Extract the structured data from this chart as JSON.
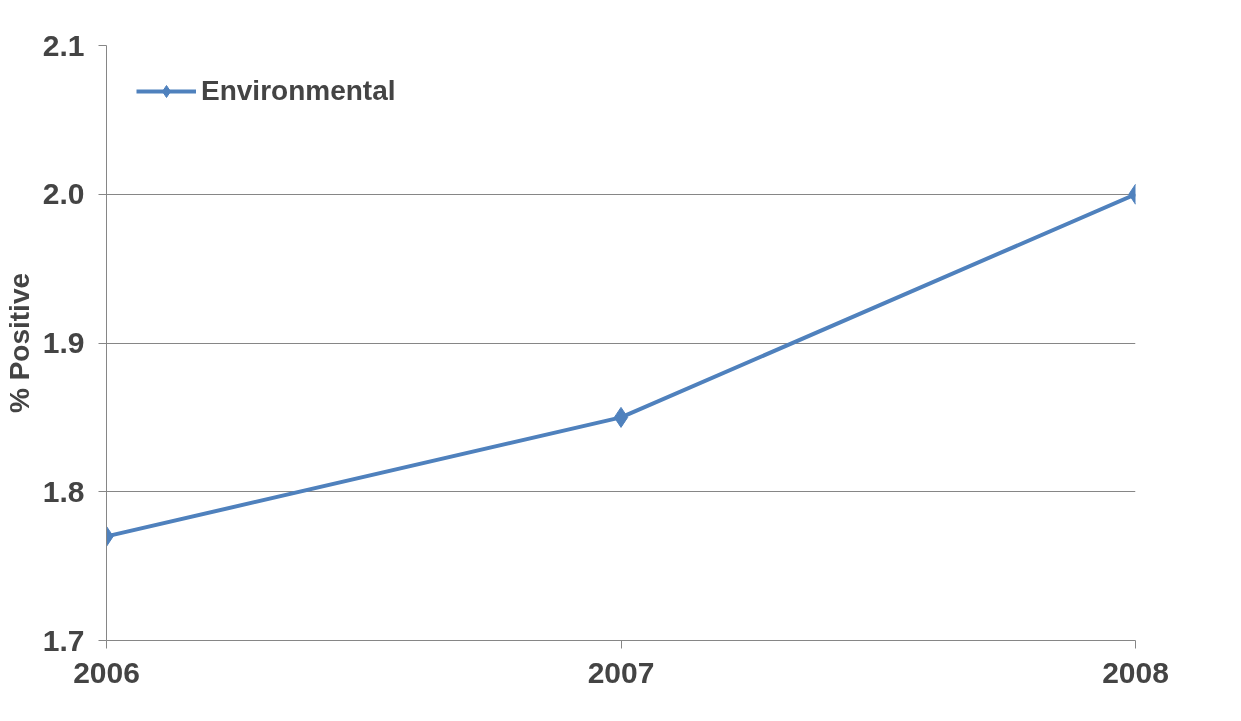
{
  "chart_data": {
    "type": "line",
    "ylabel": "% Positive",
    "categories": [
      "2006",
      "2007",
      "2008"
    ],
    "series": [
      {
        "name": "Environmental",
        "color": "#4f81bd",
        "values": [
          1.77,
          1.85,
          2.0
        ]
      }
    ],
    "ylim": [
      1.7,
      2.1
    ],
    "yticks": [
      1.7,
      1.8,
      1.9,
      {
        "value": 2.0,
        "label": "2.0"
      },
      2.1
    ],
    "grid": "y",
    "legend": "top left",
    "marker": "diamond",
    "line_style": "solid"
  }
}
